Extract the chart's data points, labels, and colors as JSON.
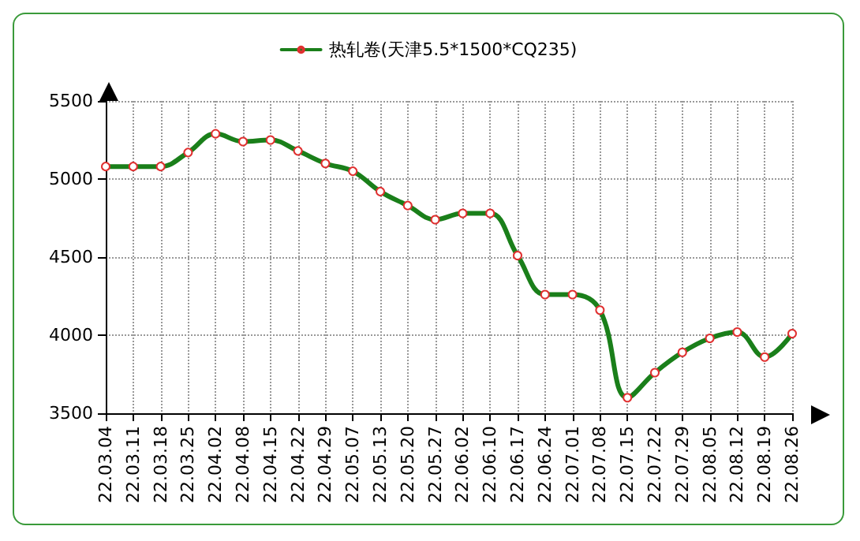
{
  "chart_data": {
    "type": "line",
    "categories": [
      "22.03.04",
      "22.03.11",
      "22.03.18",
      "22.03.25",
      "22.04.02",
      "22.04.08",
      "22.04.15",
      "22.04.22",
      "22.04.29",
      "22.05.07",
      "22.05.13",
      "22.05.20",
      "22.05.27",
      "22.06.02",
      "22.06.10",
      "22.06.17",
      "22.06.24",
      "22.07.01",
      "22.07.08",
      "22.07.15",
      "22.07.22",
      "22.07.29",
      "22.08.05",
      "22.08.12",
      "22.08.19",
      "22.08.26"
    ],
    "series": [
      {
        "name": "热轧卷(天津5.5*1500*CQ235)",
        "color": "#1a7f1a",
        "values": [
          5080,
          5080,
          5080,
          5170,
          5290,
          5240,
          5250,
          5180,
          5100,
          5050,
          4920,
          4830,
          4740,
          4780,
          4780,
          4510,
          4260,
          4260,
          4160,
          3600,
          3760,
          3890,
          3980,
          4020,
          3860,
          4010
        ]
      }
    ],
    "ylim": [
      3500,
      5500
    ],
    "yticks": [
      3500,
      4000,
      4500,
      5000,
      5500
    ],
    "grid": true,
    "legend": "top",
    "marker": "circle",
    "line_style": "solid"
  }
}
